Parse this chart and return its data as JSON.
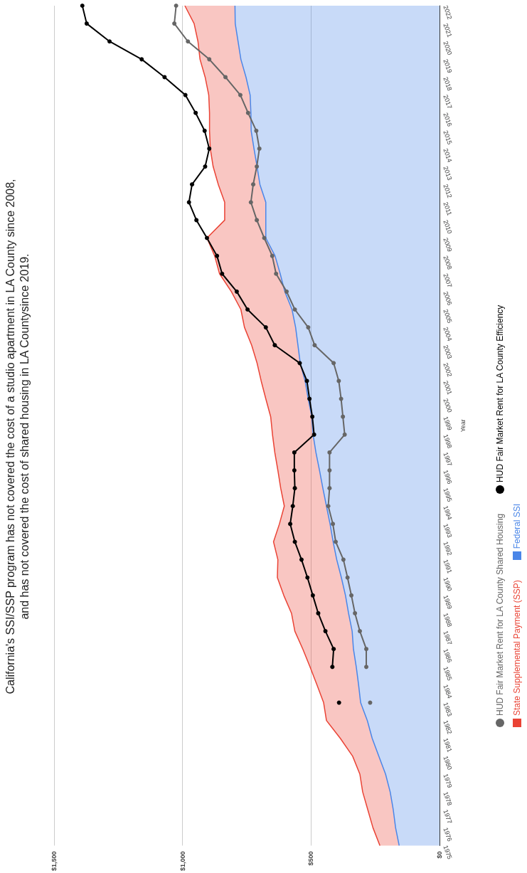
{
  "chart_data": {
    "type": "area",
    "title": "California's SSI/SSP program has not covered the cost of a studio apartment in LA County since 2008,\nand has not covered the cost of shared housing in LA Countysince 2019.",
    "ylabel": "Year",
    "orientation": "horizontal",
    "categories": [
      "2022",
      "2021",
      "2020",
      "2019",
      "2018",
      "2017",
      "2016",
      "2015",
      "2014",
      "2013",
      "2012",
      "2011",
      "2010",
      "2009",
      "2008",
      "2007",
      "2006",
      "2005",
      "2004",
      "2003",
      "2002",
      "2001",
      "2000",
      "1999",
      "1998",
      "1997",
      "1996",
      "1995",
      "1994",
      "1993",
      "1992",
      "1991",
      "1990",
      "1989",
      "1988",
      "1987",
      "1986",
      "1985",
      "1984",
      "1983",
      "1982",
      "1981",
      "1980",
      "1979",
      "1978",
      "1977",
      "1976",
      "1975"
    ],
    "stacked": true,
    "series": [
      {
        "name": "Federal SSI",
        "type": "area",
        "marker": "none",
        "color": "#4a86e8",
        "values": [
          796,
          795,
          784,
          773,
          753,
          737,
          734,
          733,
          722,
          710,
          699,
          676,
          676,
          676,
          640,
          620,
          602,
          574,
          560,
          551,
          542,
          523,
          511,
          497,
          492,
          481,
          467,
          454,
          440,
          426,
          414,
          400,
          382,
          366,
          354,
          340,
          335,
          324,
          315,
          307,
          281,
          262,
          236,
          210,
          192,
          180,
          171,
          157
        ]
      },
      {
        "name": "State Supplemental Payment (SSP)",
        "type": "area",
        "marker": "none",
        "color": "#ea4335",
        "values": [
          195,
          160,
          156,
          159,
          159,
          161,
          161,
          162,
          170,
          171,
          162,
          160,
          160,
          229,
          235,
          236,
          208,
          199,
          199,
          180,
          168,
          171,
          165,
          160,
          158,
          160,
          162,
          164,
          164,
          197,
          232,
          229,
          249,
          240,
          222,
          223,
          197,
          180,
          162,
          144,
          159,
          124,
          102,
          100,
          107,
          99,
          88,
          75
        ]
      },
      {
        "name": "HUD Fair Market Rent for LA County Efficiency",
        "type": "line",
        "color": "#000000",
        "values": [
          1390,
          1373,
          1284,
          1159,
          1070,
          989,
          949,
          914,
          896,
          912,
          963,
          975,
          946,
          905,
          866,
          846,
          789,
          747,
          676,
          641,
          544,
          516,
          506,
          495,
          488,
          565,
          565,
          563,
          571,
          581,
          563,
          537,
          514,
          493,
          472,
          444,
          412,
          417,
          null,
          391,
          null,
          null,
          null,
          null,
          null,
          null,
          null,
          null
        ]
      },
      {
        "name": "HUD Fair Market Rent for LA County Shared Housing",
        "type": "line",
        "color": "#666666",
        "values": [
          1025,
          1032,
          979,
          896,
          833,
          775,
          745,
          713,
          701,
          711,
          725,
          734,
          711,
          682,
          651,
          636,
          595,
          563,
          511,
          486,
          412,
          392,
          383,
          376,
          369,
          428,
          428,
          428,
          433,
          415,
          404,
          374,
          358,
          343,
          329,
          310,
          285,
          285,
          null,
          270,
          null,
          null,
          null,
          null,
          null,
          null,
          null,
          null
        ]
      }
    ],
    "xlim": [
      1500,
      0
    ],
    "xticks": [
      {
        "value": 1500,
        "label": "$1,500"
      },
      {
        "value": 1000,
        "label": "$1,000"
      },
      {
        "value": 500,
        "label": "$500"
      },
      {
        "value": 0,
        "label": "$0"
      }
    ],
    "grid": "x",
    "legend": "right",
    "marker": "circle"
  }
}
